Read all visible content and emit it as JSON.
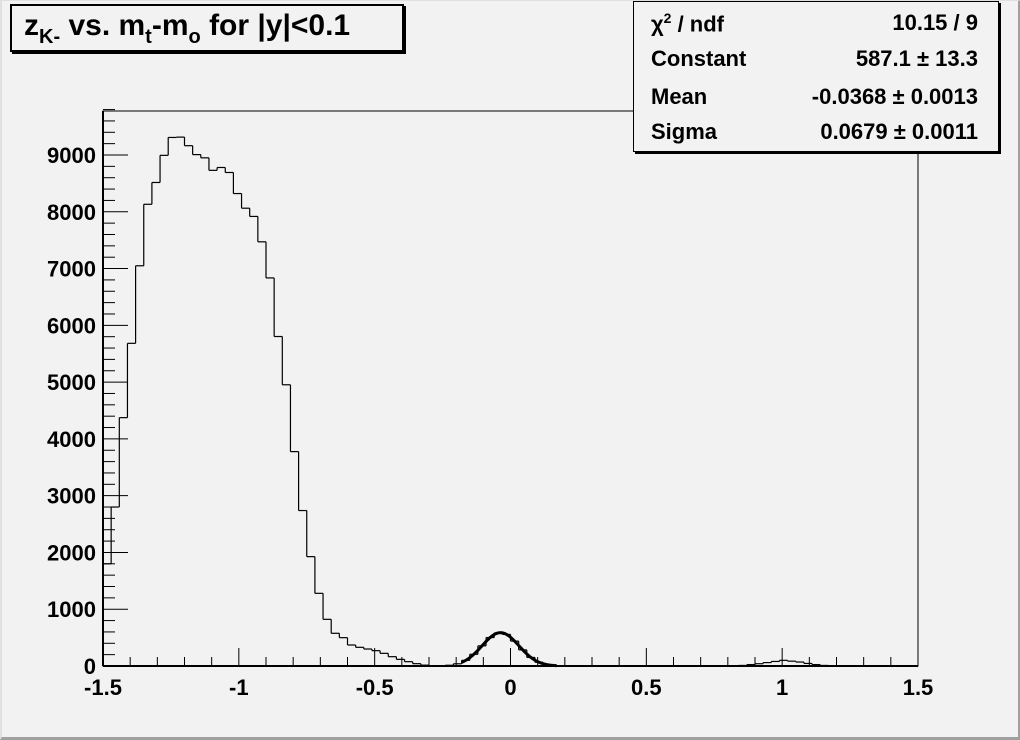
{
  "title": {
    "main": "z",
    "sub": "K-",
    "text1": " vs. m",
    "sub2": "t",
    "text2": "-m",
    "sub3": "o",
    "text3": " for |y|<0.1"
  },
  "stats": {
    "rows": [
      {
        "key": "χ",
        "key_sup": "2",
        "key_rest": " / ndf",
        "value": "10.15 / 9"
      },
      {
        "key": "Constant",
        "value": "587.1 ± 13.3"
      },
      {
        "key": "Mean",
        "value": "-0.0368 ± 0.0013"
      },
      {
        "key": "Sigma",
        "value": "0.0679 ± 0.0011"
      }
    ]
  },
  "chart_data": {
    "type": "histogram",
    "title": "z_K- vs. m_t-m_o for |y|<0.1",
    "xlabel": "",
    "ylabel": "",
    "xlim": [
      -1.5,
      1.5
    ],
    "ylim": [
      0,
      9800
    ],
    "bin_width": 0.03,
    "x_ticks": [
      "-1.5",
      "-1",
      "-0.5",
      "0",
      "0.5",
      "1",
      "1.5"
    ],
    "x_tick_values": [
      -1.5,
      -1,
      -0.5,
      0,
      0.5,
      1,
      1.5
    ],
    "y_ticks": [
      "0",
      "1000",
      "2000",
      "3000",
      "4000",
      "5000",
      "6000",
      "7000",
      "8000",
      "9000"
    ],
    "y_tick_values": [
      0,
      1000,
      2000,
      3000,
      4000,
      5000,
      6000,
      7000,
      8000,
      9000
    ],
    "grid": false,
    "bin_contents": [
      1800,
      2800,
      4374,
      5683,
      7049,
      8132,
      8516,
      8994,
      9309,
      9315,
      9164,
      9007,
      8950,
      8730,
      8780,
      8692,
      8321,
      8063,
      7918,
      7471,
      6835,
      5803,
      4953,
      3776,
      2738,
      1926,
      1280,
      822,
      576,
      499,
      370,
      329,
      299,
      270,
      223,
      164,
      117,
      76,
      41,
      15,
      0,
      0,
      13,
      39,
      99,
      206,
      355,
      501,
      583,
      557,
      439,
      284,
      151,
      66,
      24,
      7,
      0,
      0,
      0,
      0,
      0,
      0,
      0,
      0,
      0,
      0,
      0,
      0,
      0,
      0,
      0,
      0,
      0,
      0,
      0,
      0,
      0,
      0,
      10,
      25,
      40,
      60,
      80,
      100,
      85,
      70,
      45,
      25,
      10,
      0,
      0,
      0,
      0,
      0,
      0,
      0,
      0,
      0,
      0,
      0
    ],
    "fit": {
      "type": "gaus",
      "constant": 587.1,
      "mean": -0.0368,
      "sigma": 0.0679,
      "range": [
        -0.18,
        0.17
      ]
    },
    "legend": "top-right stats box"
  }
}
